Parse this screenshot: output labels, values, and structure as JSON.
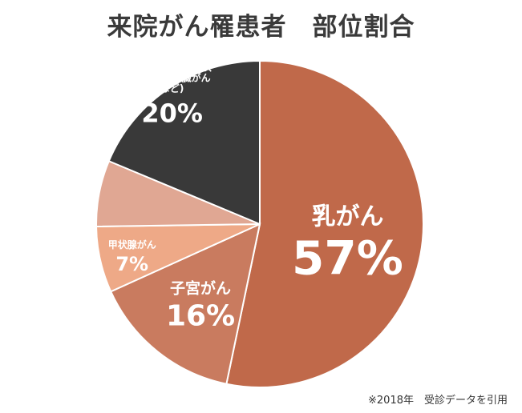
{
  "chart_data": {
    "type": "pie",
    "title": "来院がん罹患者　部位割合",
    "unit": "%",
    "slices": [
      {
        "label": "乳がん",
        "value": 57,
        "value_label": "57%",
        "color": "#c0694a"
      },
      {
        "label": "子宮がん",
        "value": 16,
        "value_label": "16%",
        "color": "#c97b5f"
      },
      {
        "label": "甲状腺がん",
        "value": 7,
        "value_label": "7%",
        "color": "#eea987"
      },
      {
        "label": "",
        "value": 7,
        "value_label": "",
        "color": "#e0a793"
      },
      {
        "label_lines": [
          "そのほか",
          "(卵巣がん、肺がん、",
          "胃がん、肝臓がん",
          "など)"
        ],
        "value": 20,
        "value_label": "20%",
        "color": "#393939"
      }
    ],
    "source_note": "※2018年　受診データを引用"
  }
}
